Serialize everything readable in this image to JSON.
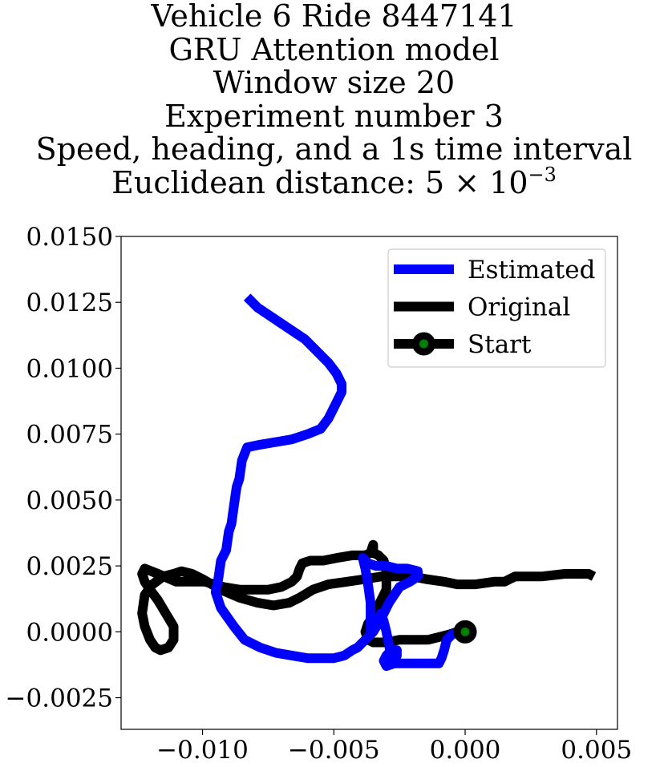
{
  "chart_data": {
    "type": "line",
    "title": {
      "lines": [
        "Vehicle 6 Ride 8447141",
        "GRU Attention model",
        "Window size 20",
        "Experiment number 3",
        "Speed, heading, and a 1s time interval"
      ],
      "distance_prefix": "Euclidean distance: 5 × 10",
      "distance_exponent": "−3"
    },
    "xlabel": "",
    "ylabel": "",
    "xlim": [
      -0.0131,
      0.0058
    ],
    "ylim": [
      -0.0037,
      0.015
    ],
    "x_ticks": [
      {
        "value": -0.01,
        "label": "−0.010"
      },
      {
        "value": -0.005,
        "label": "−0.005"
      },
      {
        "value": 0.0,
        "label": "0.000"
      },
      {
        "value": 0.005,
        "label": "0.005"
      }
    ],
    "y_ticks": [
      {
        "value": -0.0025,
        "label": "−0.0025"
      },
      {
        "value": 0.0,
        "label": "0.0000"
      },
      {
        "value": 0.0025,
        "label": "0.0025"
      },
      {
        "value": 0.005,
        "label": "0.0050"
      },
      {
        "value": 0.0075,
        "label": "0.0075"
      },
      {
        "value": 0.01,
        "label": "0.0100"
      },
      {
        "value": 0.0125,
        "label": "0.0125"
      },
      {
        "value": 0.015,
        "label": "0.0150"
      }
    ],
    "grid": false,
    "legend_position": "upper right",
    "series": [
      {
        "name": "Original",
        "color": "#000000",
        "points": [
          [
            0.0049,
            0.0021
          ],
          [
            0.0047,
            0.0022
          ],
          [
            0.0043,
            0.0022
          ],
          [
            0.0038,
            0.0022
          ],
          [
            0.0029,
            0.0021
          ],
          [
            0.0019,
            0.0021
          ],
          [
            0.0017,
            0.002
          ],
          [
            0.0015,
            0.0019
          ],
          [
            0.0011,
            0.0019
          ],
          [
            0.0004,
            0.0018
          ],
          [
            -0.0003,
            0.0018
          ],
          [
            -0.0008,
            0.0019
          ],
          [
            -0.0015,
            0.002
          ],
          [
            -0.002,
            0.0021
          ],
          [
            -0.0026,
            0.0021
          ],
          [
            -0.0032,
            0.0021
          ],
          [
            -0.0038,
            0.002
          ],
          [
            -0.0045,
            0.0019
          ],
          [
            -0.0052,
            0.0018
          ],
          [
            -0.0058,
            0.0016
          ],
          [
            -0.0063,
            0.0013
          ],
          [
            -0.0067,
            0.0011
          ],
          [
            -0.0073,
            0.001
          ],
          [
            -0.0079,
            0.0011
          ],
          [
            -0.0086,
            0.0013
          ],
          [
            -0.0093,
            0.0016
          ],
          [
            -0.01,
            0.002
          ],
          [
            -0.0104,
            0.0022
          ],
          [
            -0.0108,
            0.0023
          ],
          [
            -0.0111,
            0.0022
          ],
          [
            -0.0115,
            0.0021
          ],
          [
            -0.0119,
            0.0018
          ],
          [
            -0.0122,
            0.0014
          ],
          [
            -0.0123,
            0.0007
          ],
          [
            -0.0122,
            0.0002
          ],
          [
            -0.012,
            -0.0003
          ],
          [
            -0.0118,
            -0.0006
          ],
          [
            -0.0116,
            -0.0007
          ],
          [
            -0.0113,
            -0.0006
          ],
          [
            -0.0111,
            -0.0003
          ],
          [
            -0.0111,
            0.0002
          ],
          [
            -0.0114,
            0.0007
          ],
          [
            -0.0117,
            0.0012
          ],
          [
            -0.012,
            0.0016
          ],
          [
            -0.0122,
            0.0019
          ],
          [
            -0.0123,
            0.0022
          ],
          [
            -0.0122,
            0.0024
          ],
          [
            -0.0117,
            0.0022
          ],
          [
            -0.011,
            0.0019
          ],
          [
            -0.0099,
            0.0019
          ],
          [
            -0.0092,
            0.0017
          ],
          [
            -0.0086,
            0.0016
          ],
          [
            -0.008,
            0.0016
          ],
          [
            -0.0075,
            0.0016
          ],
          [
            -0.007,
            0.0017
          ],
          [
            -0.0066,
            0.0019
          ],
          [
            -0.0064,
            0.0021
          ],
          [
            -0.0063,
            0.0024
          ],
          [
            -0.0062,
            0.0026
          ],
          [
            -0.0059,
            0.0027
          ],
          [
            -0.0054,
            0.0027
          ],
          [
            -0.0049,
            0.0028
          ],
          [
            -0.0043,
            0.0029
          ],
          [
            -0.0038,
            0.0029
          ],
          [
            -0.0036,
            0.003
          ],
          [
            -0.0035,
            0.0033
          ],
          [
            -0.0035,
            0.003
          ],
          [
            -0.0033,
            0.0029
          ],
          [
            -0.0031,
            0.0027
          ],
          [
            -0.003,
            0.0023
          ],
          [
            -0.003,
            0.0016
          ],
          [
            -0.0032,
            0.0012
          ],
          [
            -0.0035,
            0.0006
          ],
          [
            -0.0037,
            0.0003
          ],
          [
            -0.0038,
            0.0
          ],
          [
            -0.0037,
            -0.0003
          ],
          [
            -0.0035,
            -0.0004
          ],
          [
            -0.003,
            -0.0004
          ],
          [
            -0.0025,
            -0.0003
          ],
          [
            -0.0019,
            -0.0003
          ],
          [
            -0.0014,
            -0.0003
          ],
          [
            -0.001,
            -0.0002
          ],
          [
            -0.0006,
            -0.0001
          ],
          [
            -0.0003,
            0.0
          ],
          [
            0.0,
            0.0
          ]
        ]
      },
      {
        "name": "Estimated",
        "color": "#0000ff",
        "points": [
          [
            0.0,
            0.0
          ],
          [
            -0.0002,
            0.0
          ],
          [
            -0.0005,
            -0.0001
          ],
          [
            -0.0007,
            -0.0003
          ],
          [
            -0.0008,
            -0.0007
          ],
          [
            -0.0009,
            -0.001
          ],
          [
            -0.001,
            -0.0012
          ],
          [
            -0.0012,
            -0.0012
          ],
          [
            -0.0015,
            -0.0012
          ],
          [
            -0.0018,
            -0.0012
          ],
          [
            -0.0021,
            -0.0012
          ],
          [
            -0.0024,
            -0.0012
          ],
          [
            -0.0027,
            -0.0012
          ],
          [
            -0.003,
            -0.0013
          ],
          [
            -0.0031,
            -0.0011
          ],
          [
            -0.003,
            -0.0009
          ],
          [
            -0.0028,
            -0.0007
          ],
          [
            -0.0026,
            -0.0007
          ],
          [
            -0.0026,
            -0.0009
          ],
          [
            -0.0027,
            -0.0011
          ],
          [
            -0.0028,
            -0.001
          ],
          [
            -0.0029,
            -0.0005
          ],
          [
            -0.003,
            0.0
          ],
          [
            -0.0031,
            0.0004
          ],
          [
            -0.0032,
            0.0007
          ],
          [
            -0.0033,
            0.0005
          ],
          [
            -0.0035,
            0.0001
          ],
          [
            -0.0036,
            0.0
          ],
          [
            -0.0036,
            0.0004
          ],
          [
            -0.0036,
            0.0011
          ],
          [
            -0.0037,
            0.0018
          ],
          [
            -0.0038,
            0.0024
          ],
          [
            -0.0039,
            0.0028
          ],
          [
            -0.0037,
            0.0026
          ],
          [
            -0.0034,
            0.0025
          ],
          [
            -0.003,
            0.0025
          ],
          [
            -0.0026,
            0.0024
          ],
          [
            -0.0022,
            0.0024
          ],
          [
            -0.0018,
            0.0023
          ],
          [
            -0.0018,
            0.0021
          ],
          [
            -0.0021,
            0.0019
          ],
          [
            -0.0025,
            0.0017
          ],
          [
            -0.0029,
            0.0011
          ],
          [
            -0.0032,
            0.0005
          ],
          [
            -0.0035,
            0.0
          ],
          [
            -0.0038,
            -0.0003
          ],
          [
            -0.0041,
            -0.0006
          ],
          [
            -0.0043,
            -0.0007
          ],
          [
            -0.0046,
            -0.0009
          ],
          [
            -0.005,
            -0.001
          ],
          [
            -0.0055,
            -0.001
          ],
          [
            -0.006,
            -0.001
          ],
          [
            -0.0066,
            -0.0009
          ],
          [
            -0.0072,
            -0.0008
          ],
          [
            -0.0078,
            -0.0006
          ],
          [
            -0.0084,
            -0.0003
          ],
          [
            -0.0088,
            0.0002
          ],
          [
            -0.0093,
            0.0009
          ],
          [
            -0.0095,
            0.0015
          ],
          [
            -0.0094,
            0.002
          ],
          [
            -0.0093,
            0.0027
          ],
          [
            -0.0091,
            0.0031
          ],
          [
            -0.009,
            0.0038
          ],
          [
            -0.0089,
            0.0041
          ],
          [
            -0.0088,
            0.0048
          ],
          [
            -0.0087,
            0.0055
          ],
          [
            -0.0086,
            0.0058
          ],
          [
            -0.0085,
            0.0065
          ],
          [
            -0.0083,
            0.007
          ],
          [
            -0.0078,
            0.0071
          ],
          [
            -0.0072,
            0.0072
          ],
          [
            -0.0066,
            0.0073
          ],
          [
            -0.006,
            0.0075
          ],
          [
            -0.0055,
            0.0077
          ],
          [
            -0.0052,
            0.0081
          ],
          [
            -0.0049,
            0.0087
          ],
          [
            -0.0047,
            0.0091
          ],
          [
            -0.0047,
            0.0094
          ],
          [
            -0.0049,
            0.0098
          ],
          [
            -0.0052,
            0.0102
          ],
          [
            -0.0056,
            0.0106
          ],
          [
            -0.0061,
            0.0111
          ],
          [
            -0.0067,
            0.0115
          ],
          [
            -0.0073,
            0.0119
          ],
          [
            -0.0079,
            0.0123
          ],
          [
            -0.0083,
            0.0127
          ]
        ]
      }
    ],
    "start_point": {
      "name": "Start",
      "x": 0.0,
      "y": 0.0,
      "marker_edge": "#000000",
      "marker_face": "#008000"
    },
    "legend": [
      "Estimated",
      "Original",
      "Start"
    ]
  }
}
